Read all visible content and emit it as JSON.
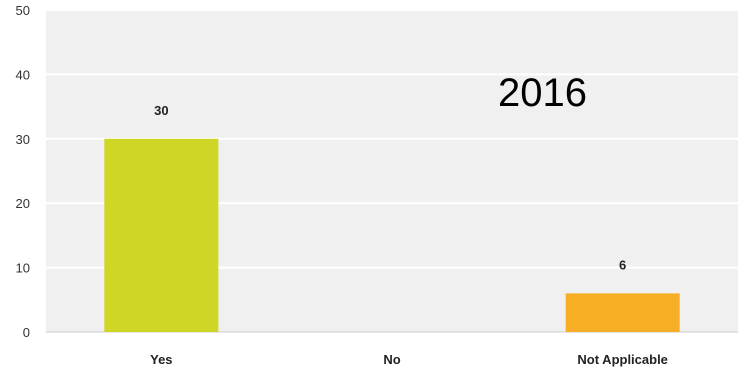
{
  "chart_data": {
    "type": "bar",
    "categories": [
      "Yes",
      "No",
      "Not Applicable"
    ],
    "values": [
      30,
      0,
      6
    ],
    "data_labels": [
      "30",
      "",
      "6"
    ],
    "colors": [
      "#cfd626",
      "#cfd626",
      "#f7ae25"
    ],
    "ylim": [
      0,
      50
    ],
    "yticks": [
      0,
      10,
      20,
      30,
      40,
      50
    ],
    "ytick_labels": [
      "0",
      "10",
      "20",
      "30",
      "40",
      "50"
    ],
    "grid": true,
    "annotation": "2016",
    "background": "#f0f0f0",
    "gridline_color": "#ffffff"
  }
}
